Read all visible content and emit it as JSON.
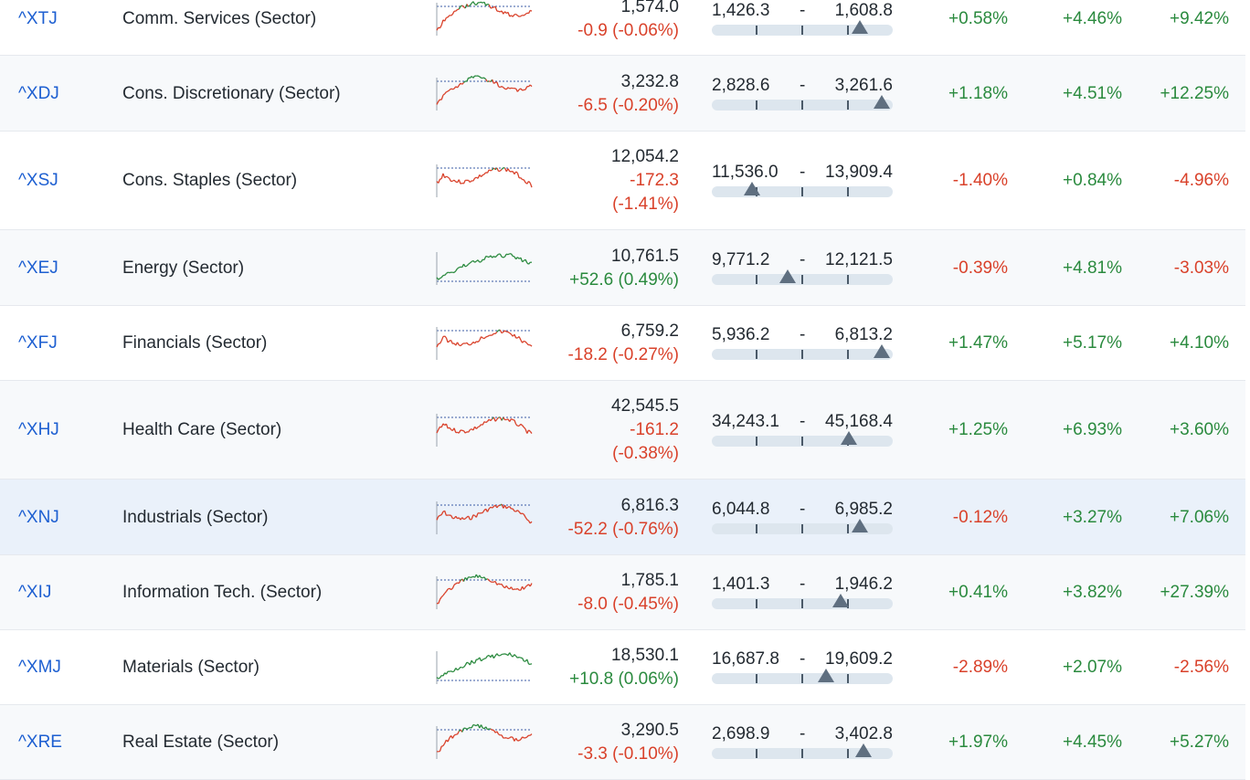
{
  "colors": {
    "up": "#2a8a3e",
    "down": "#d9412a",
    "link": "#1d5fd1",
    "highlight": "#eaf1fa"
  },
  "rows": [
    {
      "symbol": "^XTJ",
      "name": "Comm. Services (Sector)",
      "last": "1,574.0",
      "change": "-0.9 (-0.06%)",
      "change_parts": [
        "-0.9 (-0.06%)"
      ],
      "dir": "down",
      "low": "1,426.3",
      "high": "1,608.8",
      "pos": 0.82,
      "p1": "+0.58%",
      "p2": "+4.46%",
      "p3": "+9.42%",
      "spark_dir": "mixed"
    },
    {
      "symbol": "^XDJ",
      "name": "Cons. Discretionary (Sector)",
      "last": "3,232.8",
      "change": "-6.5 (-0.20%)",
      "change_parts": [
        "-6.5 (-0.20%)"
      ],
      "dir": "down",
      "low": "2,828.6",
      "high": "3,261.6",
      "pos": 0.94,
      "p1": "+1.18%",
      "p2": "+4.51%",
      "p3": "+12.25%",
      "spark_dir": "mixed"
    },
    {
      "symbol": "^XSJ",
      "name": "Cons. Staples (Sector)",
      "last": "12,054.2",
      "change": "-172.3 (-1.41%)",
      "change_parts": [
        "-172.3",
        "(-1.41%)"
      ],
      "dir": "down",
      "low": "11,536.0",
      "high": "13,909.4",
      "pos": 0.22,
      "p1": "-1.40%",
      "p2": "+0.84%",
      "p3": "-4.96%",
      "spark_dir": "down"
    },
    {
      "symbol": "^XEJ",
      "name": "Energy (Sector)",
      "last": "10,761.5",
      "change": "+52.6 (0.49%)",
      "change_parts": [
        "+52.6 (0.49%)"
      ],
      "dir": "up",
      "low": "9,771.2",
      "high": "12,121.5",
      "pos": 0.42,
      "p1": "-0.39%",
      "p2": "+4.81%",
      "p3": "-3.03%",
      "spark_dir": "up"
    },
    {
      "symbol": "^XFJ",
      "name": "Financials (Sector)",
      "last": "6,759.2",
      "change": "-18.2 (-0.27%)",
      "change_parts": [
        "-18.2 (-0.27%)"
      ],
      "dir": "down",
      "low": "5,936.2",
      "high": "6,813.2",
      "pos": 0.94,
      "p1": "+1.47%",
      "p2": "+5.17%",
      "p3": "+4.10%",
      "spark_dir": "down"
    },
    {
      "symbol": "^XHJ",
      "name": "Health Care (Sector)",
      "last": "42,545.5",
      "change": "-161.2 (-0.38%)",
      "change_parts": [
        "-161.2",
        "(-0.38%)"
      ],
      "dir": "down",
      "low": "34,243.1",
      "high": "45,168.4",
      "pos": 0.76,
      "p1": "+1.25%",
      "p2": "+6.93%",
      "p3": "+3.60%",
      "spark_dir": "down"
    },
    {
      "symbol": "^XNJ",
      "name": "Industrials (Sector)",
      "last": "6,816.3",
      "change": "-52.2 (-0.76%)",
      "change_parts": [
        "-52.2 (-0.76%)"
      ],
      "dir": "down",
      "low": "6,044.8",
      "high": "6,985.2",
      "pos": 0.82,
      "p1": "-0.12%",
      "p2": "+3.27%",
      "p3": "+7.06%",
      "spark_dir": "down"
    },
    {
      "symbol": "^XIJ",
      "name": "Information Tech. (Sector)",
      "last": "1,785.1",
      "change": "-8.0 (-0.45%)",
      "change_parts": [
        "-8.0 (-0.45%)"
      ],
      "dir": "down",
      "low": "1,401.3",
      "high": "1,946.2",
      "pos": 0.71,
      "p1": "+0.41%",
      "p2": "+3.82%",
      "p3": "+27.39%",
      "spark_dir": "mixed"
    },
    {
      "symbol": "^XMJ",
      "name": "Materials (Sector)",
      "last": "18,530.1",
      "change": "+10.8 (0.06%)",
      "change_parts": [
        "+10.8 (0.06%)"
      ],
      "dir": "up",
      "low": "16,687.8",
      "high": "19,609.2",
      "pos": 0.63,
      "p1": "-2.89%",
      "p2": "+2.07%",
      "p3": "-2.56%",
      "spark_dir": "up"
    },
    {
      "symbol": "^XRE",
      "name": "Real Estate (Sector)",
      "last": "3,290.5",
      "change": "-3.3 (-0.10%)",
      "change_parts": [
        "-3.3 (-0.10%)"
      ],
      "dir": "down",
      "low": "2,698.9",
      "high": "3,402.8",
      "pos": 0.84,
      "p1": "+1.97%",
      "p2": "+4.45%",
      "p3": "+5.27%",
      "spark_dir": "mixed"
    }
  ]
}
